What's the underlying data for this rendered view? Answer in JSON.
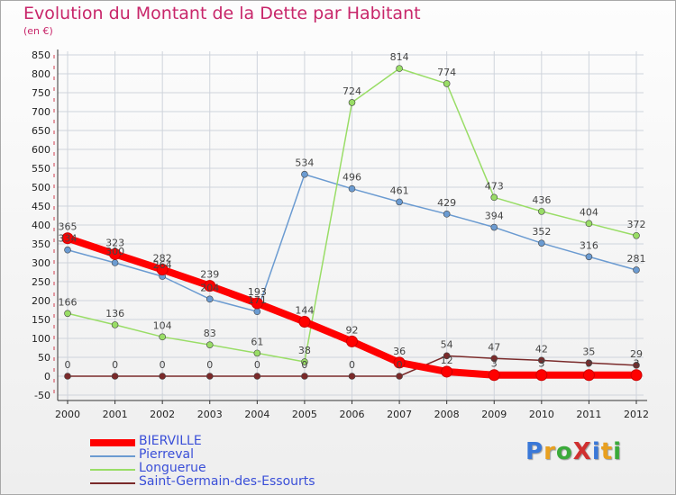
{
  "title": "Evolution du Montant de la Dette par Habitant",
  "subtitle": "(en €)",
  "logo": "ProXiti",
  "colors": {
    "title": "#c8266a",
    "grid": "#cfd4dc",
    "axis": "#333333",
    "tick_text": "#222222",
    "value_label": "#444444"
  },
  "chart_data": {
    "type": "line",
    "x": [
      "2000",
      "2001",
      "2002",
      "2003",
      "2004",
      "2005",
      "2006",
      "2007",
      "2008",
      "2009",
      "2010",
      "2011",
      "2012"
    ],
    "ylim": [
      -50,
      850
    ],
    "yticks": [
      -50,
      0,
      50,
      100,
      150,
      200,
      250,
      300,
      350,
      400,
      450,
      500,
      550,
      600,
      650,
      700,
      750,
      800,
      850
    ],
    "grid": true,
    "legend_position": "bottom-left",
    "series": [
      {
        "name": "BIERVILLE",
        "color": "#ff0000",
        "width": 8,
        "marker_r": 6,
        "values": [
          365,
          323,
          282,
          239,
          193,
          144,
          92,
          36,
          12,
          3,
          3,
          3,
          3
        ],
        "labels": [
          "365",
          "323",
          "282",
          "239",
          "193",
          "144",
          "92",
          "36",
          "12",
          "3",
          "3",
          "3",
          "3"
        ]
      },
      {
        "name": "Pierreval",
        "color": "#6b9bd1",
        "width": 1.5,
        "marker_r": 3.5,
        "values": [
          334,
          300,
          264,
          204,
          171,
          534,
          496,
          461,
          429,
          394,
          352,
          316,
          281
        ],
        "labels": [
          "334",
          "300",
          "264",
          "204",
          "171",
          "534",
          "496",
          "461",
          "429",
          "394",
          "352",
          "316",
          "281"
        ]
      },
      {
        "name": "Longuerue",
        "color": "#99dd66",
        "width": 1.5,
        "marker_r": 3.5,
        "values": [
          166,
          136,
          104,
          83,
          61,
          38,
          724,
          814,
          774,
          473,
          436,
          404,
          372
        ],
        "labels": [
          "166",
          "136",
          "104",
          "83",
          "61",
          "38",
          "724",
          "814",
          "774",
          "473",
          "436",
          "404",
          "372"
        ]
      },
      {
        "name": "Saint-Germain-des-Essourts",
        "color": "#7a2a2a",
        "width": 1.5,
        "marker_r": 3.5,
        "values": [
          0,
          0,
          0,
          0,
          0,
          0,
          0,
          0,
          54,
          47,
          42,
          35,
          29
        ],
        "labels": [
          "0",
          "0",
          "0",
          "0",
          "0",
          "0",
          "0",
          "0",
          "54",
          "47",
          "42",
          "35",
          "29"
        ]
      }
    ]
  }
}
